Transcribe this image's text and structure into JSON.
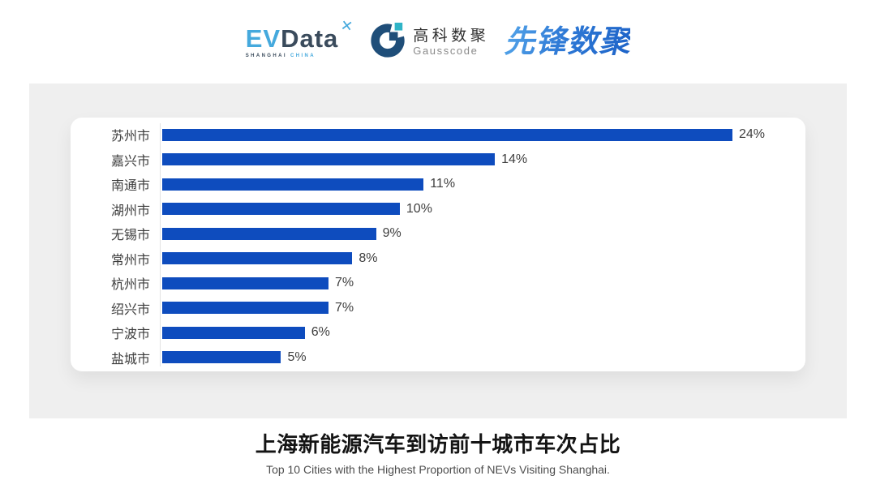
{
  "header": {
    "logos": {
      "evdata": {
        "word_part1": "EV",
        "word_part2": "Data",
        "mark_glyph": "✕",
        "sub_part1": "SHANGHAI",
        "sub_part2": "CHINA",
        "color_light_blue": "#45a9dd",
        "color_dark_slate": "#3a4b5c"
      },
      "gausscode": {
        "cn_name": "高科数聚",
        "en_name": "Gausscode",
        "icon_navy": "#1f4e79",
        "icon_teal": "#2fb4c7"
      },
      "pioneer": {
        "cn_name": "先锋数聚",
        "color_blue": "#2e7bd2"
      }
    }
  },
  "chart_data": {
    "type": "bar",
    "orientation": "horizontal",
    "title": "上海新能源汽车到访前十城市车次占比",
    "subtitle": "Top 10 Cities with the Highest Proportion of NEVs Visiting Shanghai.",
    "categories": [
      "苏州市",
      "嘉兴市",
      "南通市",
      "湖州市",
      "无锡市",
      "常州市",
      "杭州市",
      "绍兴市",
      "宁波市",
      "盐城市"
    ],
    "values": [
      24,
      14,
      11,
      10,
      9,
      8,
      7,
      7,
      6,
      5
    ],
    "unit": "%",
    "xlim": [
      0,
      24
    ],
    "bar_color": "#0e4cbe",
    "axis_line_color": "#e2e2e2",
    "grid": false,
    "legend": false,
    "value_labels_shown": true
  }
}
